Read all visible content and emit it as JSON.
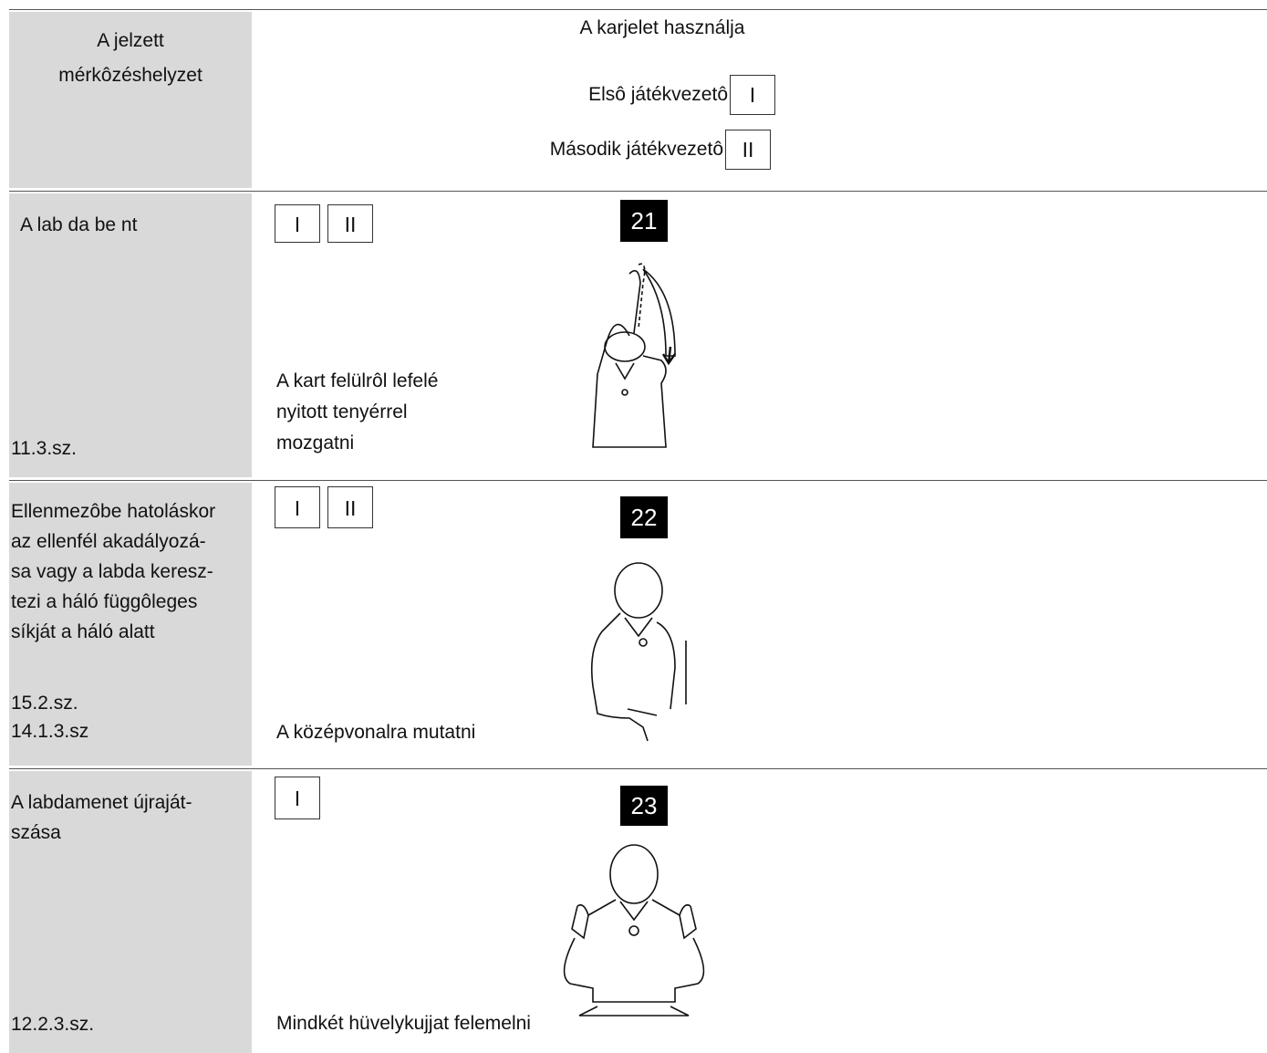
{
  "header": {
    "situation": [
      "A jelzett",
      "mérkôzéshelyzet"
    ],
    "used_by": "A karjelet használja",
    "referees": [
      {
        "label": "Elsô játékvezetô",
        "mark": "I"
      },
      {
        "label": "Második játékvezetô",
        "mark": "II"
      }
    ]
  },
  "rows": [
    {
      "situation": [
        "A lab da be nt"
      ],
      "references": [
        "11.3.sz."
      ],
      "referees": [
        "I",
        "II"
      ],
      "number": 21,
      "description": [
        "A kart felülrôl lefelé",
        "nyitott tenyérrel",
        "mozgatni"
      ]
    },
    {
      "situation": [
        "Ellenmezôbe hatoláskor",
        "az ellenfél akadályozá-",
        "sa vagy a labda keresz-",
        "tezi a háló függôleges",
        "síkját a háló alatt"
      ],
      "references": [
        "15.2.sz.",
        "14.1.3.sz"
      ],
      "referees": [
        "I",
        "II"
      ],
      "number": 22,
      "description": [
        "A középvonalra mutatni"
      ]
    },
    {
      "situation": [
        "A labdamenet újraját-",
        "szása"
      ],
      "references": [
        "12.2.3.sz."
      ],
      "referees": [
        "I"
      ],
      "number": 23,
      "description": [
        "Mindkét hüvelykujjat felemelni"
      ]
    }
  ]
}
